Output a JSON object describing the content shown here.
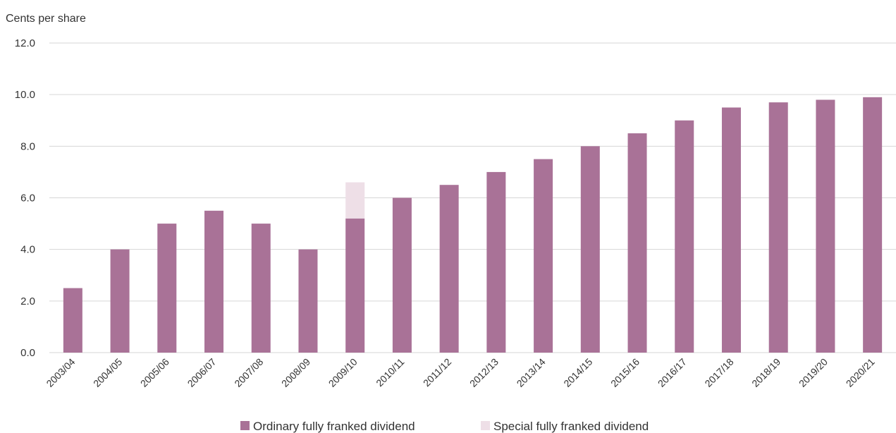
{
  "chart_data": {
    "type": "bar",
    "stacked": true,
    "ylabel": "Cents per share",
    "ylim": [
      0,
      12
    ],
    "yticks": [
      "0.0",
      "2.0",
      "4.0",
      "6.0",
      "8.0",
      "10.0",
      "12.0"
    ],
    "ytick_values": [
      0,
      2,
      4,
      6,
      8,
      10,
      12
    ],
    "grid": true,
    "legend_position": "bottom-center",
    "categories": [
      "2003/04",
      "2004/05",
      "2005/06",
      "2006/07",
      "2007/08",
      "2008/09",
      "2009/10",
      "2010/11",
      "2011/12",
      "2012/13",
      "2013/14",
      "2014/15",
      "2015/16",
      "2016/17",
      "2017/18",
      "2018/19",
      "2019/20",
      "2020/21"
    ],
    "series": [
      {
        "name": "Ordinary fully franked dividend",
        "color": "#a97297",
        "values": [
          2.5,
          4.0,
          5.0,
          5.5,
          5.0,
          4.0,
          5.2,
          6.0,
          6.5,
          7.0,
          7.5,
          8.0,
          8.5,
          9.0,
          9.5,
          9.7,
          9.8,
          9.9
        ]
      },
      {
        "name": "Special fully franked dividend",
        "color": "#eedfe7",
        "values": [
          0,
          0,
          0,
          0,
          0,
          0,
          1.4,
          0,
          0,
          0,
          0,
          0,
          0,
          0,
          0,
          0,
          0,
          0
        ]
      }
    ]
  }
}
